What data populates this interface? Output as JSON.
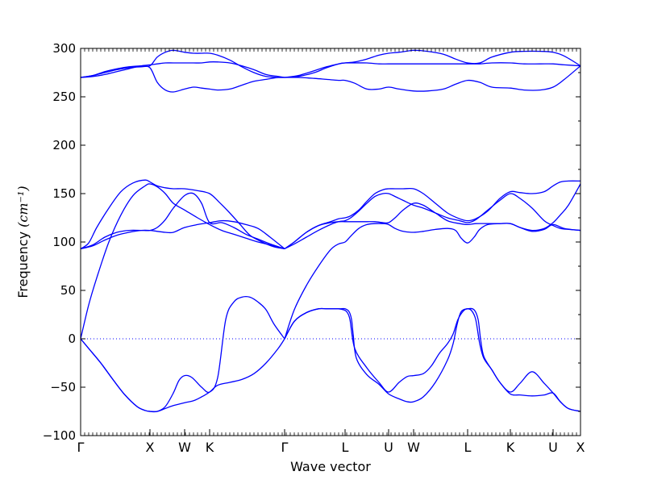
{
  "chart_data": {
    "type": "line",
    "title": "",
    "xlabel": "Wave vector",
    "ylabel": "Frequency (cm⁻¹)",
    "ylabel_unit": "(cm⁻¹)",
    "ylabel_prefix": "Frequency",
    "ylim": [
      -100,
      300
    ],
    "yticks": [
      -100,
      -50,
      0,
      50,
      100,
      150,
      200,
      250,
      300
    ],
    "ytick_labels": [
      "−100",
      "−50",
      "0",
      "50",
      "100",
      "150",
      "200",
      "250",
      "300"
    ],
    "xlim": [
      0,
      6.2
    ],
    "xtick_positions": [
      0,
      0.86,
      1.29,
      1.6,
      2.53,
      3.28,
      3.82,
      4.13,
      4.8,
      5.33,
      5.86,
      6.2
    ],
    "xtick_labels": [
      "Γ",
      "X",
      "W",
      "K",
      "Γ",
      "L",
      "U",
      "W",
      "L",
      "K",
      "U",
      "X"
    ],
    "grid": false,
    "color": "#0000ff",
    "zero_line": {
      "y": 0,
      "style": "dotted"
    },
    "series": [
      {
        "x": [
          0,
          0.1,
          0.2,
          0.35,
          0.5,
          0.65,
          0.8,
          0.86,
          0.95,
          1.05,
          1.15,
          1.29,
          1.45,
          1.6,
          1.72,
          1.85,
          1.98,
          2.1,
          2.25,
          2.4,
          2.53
        ],
        "values": [
          93,
          99,
          115,
          135,
          152,
          161,
          164,
          162,
          158,
          156,
          155,
          155,
          153,
          150,
          141,
          130,
          118,
          107,
          100,
          95,
          93
        ]
      },
      {
        "x": [
          0,
          0.15,
          0.3,
          0.45,
          0.6,
          0.75,
          0.86,
          0.95,
          1.05,
          1.15,
          1.29,
          1.45,
          1.6,
          1.75,
          1.9,
          2.05,
          2.2,
          2.35,
          2.53
        ],
        "values": [
          93,
          96,
          102,
          107,
          110,
          112,
          112,
          111,
          110,
          110,
          115,
          118,
          120,
          122,
          121,
          118,
          114,
          105,
          93
        ]
      },
      {
        "x": [
          0,
          0.1,
          0.2,
          0.35,
          0.5,
          0.65,
          0.8,
          0.86,
          0.95,
          1.05,
          1.15,
          1.29,
          1.45,
          1.6,
          1.75,
          1.9,
          2.05,
          2.2,
          2.35,
          2.53
        ],
        "values": [
          0,
          35,
          63,
          100,
          128,
          148,
          158,
          160,
          157,
          150,
          140,
          133,
          125,
          118,
          112,
          108,
          104,
          100,
          97,
          93
        ]
      },
      {
        "x": [
          0,
          0.15,
          0.3,
          0.45,
          0.6,
          0.75,
          0.86,
          0.95,
          1.05,
          1.15,
          1.29,
          1.4,
          1.5,
          1.6,
          1.75,
          1.9,
          2.05,
          2.2,
          2.35,
          2.53
        ],
        "values": [
          93,
          97,
          105,
          110,
          112,
          112,
          112,
          115,
          123,
          135,
          148,
          150,
          140,
          120,
          120,
          115,
          108,
          103,
          98,
          93
        ]
      },
      {
        "x": [
          0,
          0.1,
          0.25,
          0.4,
          0.55,
          0.7,
          0.8,
          0.86,
          0.95,
          1.05,
          1.15,
          1.29,
          1.4,
          1.5,
          1.6,
          1.7,
          1.85,
          2.0,
          2.15,
          2.3,
          2.45,
          2.53
        ],
        "values": [
          0,
          -10,
          -25,
          -42,
          -58,
          -70,
          -74,
          -75,
          -75,
          -72,
          -69,
          -66,
          -64,
          -60,
          -55,
          -48,
          -45,
          -42,
          -36,
          -25,
          -10,
          0
        ]
      },
      {
        "x": [
          0,
          0.1,
          0.25,
          0.4,
          0.55,
          0.7,
          0.8,
          0.86,
          0.95,
          1.05,
          1.15,
          1.22,
          1.29,
          1.38,
          1.5,
          1.6,
          1.7,
          1.8,
          1.9,
          2.0,
          2.1,
          2.2,
          2.3,
          2.4,
          2.53
        ],
        "values": [
          0,
          -10,
          -25,
          -42,
          -58,
          -70,
          -74,
          -75,
          -75,
          -70,
          -56,
          -43,
          -38,
          -40,
          -50,
          -55,
          -40,
          20,
          38,
          43,
          43,
          38,
          30,
          15,
          0
        ]
      },
      {
        "x": [
          0,
          0.15,
          0.3,
          0.45,
          0.6,
          0.75,
          0.86,
          0.95,
          1.05,
          1.15,
          1.29,
          1.4,
          1.5,
          1.6,
          1.7,
          1.85,
          2.0,
          2.15,
          2.3,
          2.45,
          2.53
        ],
        "values": [
          270,
          271,
          273,
          276,
          279,
          282,
          283,
          284,
          285,
          285,
          285,
          285,
          285,
          286,
          286,
          285,
          282,
          278,
          273,
          271,
          270
        ]
      },
      {
        "x": [
          0,
          0.15,
          0.3,
          0.45,
          0.6,
          0.75,
          0.86,
          0.95,
          1.05,
          1.15,
          1.29,
          1.4,
          1.5,
          1.6,
          1.7,
          1.85,
          2.0,
          2.15,
          2.3,
          2.45,
          2.53
        ],
        "values": [
          270,
          272,
          275,
          278,
          280,
          281,
          280,
          265,
          257,
          255,
          258,
          260,
          259,
          258,
          257,
          258,
          262,
          266,
          268,
          270,
          270
        ]
      },
      {
        "x": [
          0,
          0.15,
          0.3,
          0.45,
          0.6,
          0.75,
          0.86,
          0.95,
          1.05,
          1.15,
          1.29,
          1.4,
          1.5,
          1.6,
          1.7,
          1.85,
          2.0,
          2.15,
          2.3,
          2.45,
          2.53
        ],
        "values": [
          270,
          272,
          276,
          279,
          281,
          282,
          282,
          291,
          296,
          298,
          296,
          295,
          295,
          295,
          293,
          288,
          281,
          275,
          271,
          270,
          270
        ]
      },
      {
        "x": [
          2.53,
          2.65,
          2.8,
          2.95,
          3.1,
          3.2,
          3.28,
          3.35,
          3.45,
          3.55,
          3.65,
          3.75,
          3.82,
          3.9,
          4.0,
          4.13,
          4.25,
          4.4,
          4.55,
          4.7,
          4.8,
          4.9,
          5.05,
          5.2,
          5.33,
          5.45,
          5.6,
          5.75,
          5.86,
          5.95,
          6.05,
          6.2
        ],
        "values": [
          93,
          100,
          110,
          117,
          120,
          121,
          121,
          121,
          121,
          121,
          121,
          120,
          120,
          125,
          133,
          140,
          138,
          130,
          122,
          119,
          118,
          119,
          119,
          119,
          119,
          115,
          112,
          114,
          120,
          128,
          138,
          160
        ]
      },
      {
        "x": [
          2.53,
          2.65,
          2.8,
          2.95,
          3.1,
          3.2,
          3.28,
          3.35,
          3.45,
          3.55,
          3.65,
          3.75,
          3.82,
          3.9,
          4.0,
          4.13,
          4.25,
          4.4,
          4.55,
          4.7,
          4.8,
          4.9,
          5.05,
          5.2,
          5.33,
          5.45,
          5.6,
          5.75,
          5.86,
          5.95,
          6.05,
          6.2
        ],
        "values": [
          93,
          100,
          110,
          117,
          121,
          124,
          125,
          127,
          133,
          142,
          150,
          154,
          155,
          155,
          155,
          155,
          150,
          140,
          130,
          124,
          122,
          124,
          132,
          145,
          152,
          151,
          150,
          152,
          158,
          162,
          163,
          163
        ]
      },
      {
        "x": [
          2.53,
          2.65,
          2.8,
          2.95,
          3.1,
          3.2,
          3.28,
          3.35,
          3.45,
          3.55,
          3.65,
          3.75,
          3.82,
          3.9,
          4.0,
          4.13,
          4.25,
          4.4,
          4.55,
          4.7,
          4.8,
          4.9,
          5.05,
          5.2,
          5.33,
          5.45,
          5.6,
          5.75,
          5.86,
          5.95,
          6.05,
          6.2
        ],
        "values": [
          93,
          98,
          105,
          112,
          118,
          121,
          122,
          125,
          132,
          140,
          147,
          150,
          150,
          147,
          143,
          138,
          135,
          130,
          125,
          122,
          120,
          123,
          133,
          143,
          150,
          145,
          135,
          122,
          117,
          114,
          113,
          112
        ]
      },
      {
        "x": [
          2.53,
          2.65,
          2.8,
          2.95,
          3.1,
          3.2,
          3.28,
          3.35,
          3.45,
          3.55,
          3.65,
          3.75,
          3.82,
          3.9,
          4.0,
          4.13,
          4.25,
          4.4,
          4.55,
          4.65,
          4.72,
          4.8,
          4.88,
          4.95,
          5.05,
          5.2,
          5.33,
          5.45,
          5.6,
          5.75,
          5.86,
          6.0,
          6.2
        ],
        "values": [
          0,
          30,
          55,
          75,
          92,
          98,
          100,
          106,
          114,
          118,
          119,
          119,
          118,
          114,
          111,
          110,
          111,
          113,
          114,
          112,
          104,
          99,
          105,
          113,
          118,
          119,
          119,
          115,
          111,
          113,
          118,
          114,
          112
        ]
      },
      {
        "x": [
          2.53,
          2.65,
          2.8,
          2.95,
          3.05,
          3.15,
          3.2,
          3.26,
          3.3,
          3.34,
          3.4,
          3.55,
          3.7,
          3.82,
          3.95,
          4.05,
          4.13,
          4.25,
          4.35,
          4.45,
          4.55,
          4.62,
          4.68,
          4.75,
          4.8,
          4.85,
          4.9,
          4.95,
          5.0,
          5.1,
          5.2,
          5.33,
          5.45,
          5.6,
          5.75,
          5.86,
          5.95,
          6.05,
          6.2
        ],
        "values": [
          0,
          18,
          27,
          31,
          31,
          31,
          31,
          30,
          28,
          20,
          -10,
          -30,
          -45,
          -55,
          -45,
          -39,
          -38,
          -36,
          -28,
          -15,
          -5,
          5,
          20,
          29,
          31,
          29,
          20,
          -5,
          -20,
          -32,
          -45,
          -55,
          -46,
          -34,
          -46,
          -56,
          -65,
          -72,
          -75
        ]
      },
      {
        "x": [
          2.53,
          2.65,
          2.8,
          2.95,
          3.05,
          3.15,
          3.22,
          3.28,
          3.33,
          3.36,
          3.38,
          3.42,
          3.55,
          3.7,
          3.82,
          3.95,
          4.05,
          4.13,
          4.25,
          4.4,
          4.55,
          4.62,
          4.67,
          4.72,
          4.8,
          4.88,
          4.93,
          4.96,
          5.0,
          5.1,
          5.2,
          5.33,
          5.45,
          5.6,
          5.75,
          5.86,
          5.95,
          6.05,
          6.2
        ],
        "values": [
          0,
          18,
          27,
          31,
          31,
          31,
          31,
          31,
          28,
          20,
          5,
          -20,
          -37,
          -47,
          -57,
          -62,
          -65,
          -65,
          -60,
          -45,
          -22,
          -5,
          15,
          28,
          31,
          30,
          20,
          0,
          -18,
          -32,
          -45,
          -57,
          -58,
          -59,
          -58,
          -56,
          -65,
          -72,
          -75
        ]
      },
      {
        "x": [
          2.53,
          2.7,
          2.9,
          3.05,
          3.2,
          3.28,
          3.4,
          3.55,
          3.7,
          3.82,
          3.95,
          4.13,
          4.3,
          4.5,
          4.65,
          4.8,
          4.95,
          5.1,
          5.33,
          5.5,
          5.7,
          5.86,
          6.0,
          6.2
        ],
        "values": [
          270,
          271,
          275,
          280,
          284,
          285,
          285,
          285,
          284,
          284,
          284,
          284,
          284,
          284,
          284,
          284,
          284,
          285,
          285,
          284,
          284,
          284,
          283,
          282
        ]
      },
      {
        "x": [
          2.53,
          2.7,
          2.9,
          3.05,
          3.2,
          3.28,
          3.4,
          3.55,
          3.7,
          3.82,
          3.95,
          4.13,
          4.3,
          4.5,
          4.65,
          4.8,
          4.95,
          5.1,
          5.33,
          5.5,
          5.7,
          5.86,
          6.0,
          6.2
        ],
        "values": [
          270,
          270,
          269,
          268,
          267,
          267,
          264,
          258,
          258,
          260,
          258,
          256,
          256,
          258,
          263,
          267,
          265,
          260,
          259,
          257,
          257,
          260,
          268,
          282
        ]
      },
      {
        "x": [
          2.53,
          2.7,
          2.9,
          3.05,
          3.2,
          3.28,
          3.4,
          3.55,
          3.7,
          3.82,
          3.95,
          4.13,
          4.3,
          4.5,
          4.65,
          4.8,
          4.95,
          5.1,
          5.33,
          5.5,
          5.7,
          5.86,
          6.0,
          6.2
        ],
        "values": [
          270,
          272,
          277,
          281,
          284,
          285,
          286,
          289,
          293,
          295,
          296,
          298,
          297,
          294,
          289,
          285,
          285,
          291,
          296,
          297,
          297,
          296,
          292,
          282
        ]
      }
    ]
  }
}
